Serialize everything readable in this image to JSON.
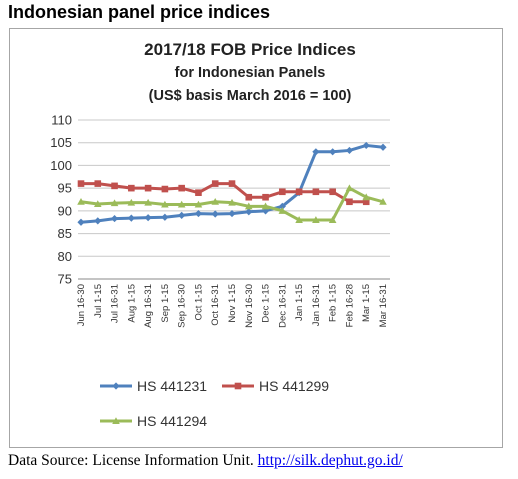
{
  "heading": "Indonesian panel price indices",
  "source": {
    "text": "Data Source: License Information Unit.",
    "link": "http://silk.dephut.go.id/"
  },
  "chart_data": {
    "type": "line",
    "title_lines": [
      "2017/18 FOB Price Indices",
      "for Indonesian Panels",
      "(US$ basis March 2016 = 100)"
    ],
    "xlabel": "",
    "ylabel": "",
    "ylim": [
      75,
      110
    ],
    "yticks": [
      75,
      80,
      85,
      90,
      95,
      100,
      105,
      110
    ],
    "grid": "horizontal",
    "legend_position": "bottom",
    "x": [
      "Jun 16-30",
      "Jul 1-15",
      "Jul 16-31",
      "Aug 1-15",
      "Aug 16-31",
      "Sep 1-15",
      "Sep 16-30",
      "Oct 1-15",
      "Oct 16-31",
      "Nov 1-15",
      "Nov 16-30",
      "Dec 1-15",
      "Dec 16-31",
      "Jan 1-15",
      "Jan 16-31",
      "Feb 1-15",
      "Feb 16-28",
      "Mar 1-15",
      "Mar 16-31"
    ],
    "series": [
      {
        "name": "HS 441231",
        "color": "#4f81bd",
        "marker": "diamond",
        "values": [
          87.5,
          87.8,
          88.3,
          88.4,
          88.5,
          88.6,
          89.0,
          89.4,
          89.3,
          89.4,
          89.8,
          90.0,
          91.0,
          94.0,
          103.0,
          103.0,
          103.3,
          104.4,
          104.0
        ]
      },
      {
        "name": "HS 441299",
        "color": "#c0504d",
        "marker": "square",
        "values": [
          96.0,
          96.0,
          95.5,
          95.0,
          95.0,
          94.8,
          95.0,
          94.0,
          96.0,
          96.0,
          93.0,
          93.0,
          94.2,
          94.2,
          94.2,
          94.2,
          92.0,
          92.0,
          null
        ]
      },
      {
        "name": "HS 441294",
        "color": "#9bbb59",
        "marker": "triangle",
        "values": [
          92.0,
          91.5,
          91.7,
          91.8,
          91.8,
          91.4,
          91.4,
          91.4,
          92.0,
          91.8,
          91.0,
          91.0,
          90.0,
          88.0,
          88.0,
          88.0,
          95.0,
          93.0,
          92.0
        ]
      }
    ]
  }
}
